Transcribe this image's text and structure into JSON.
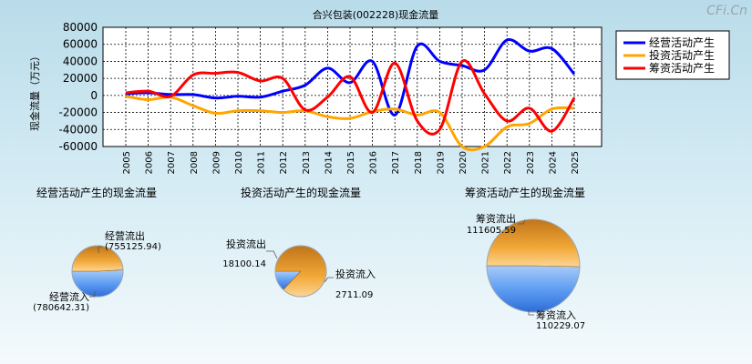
{
  "watermark": "CFi.Cn",
  "chart_data": [
    {
      "type": "line",
      "title": "合兴包装(002228)现金流量",
      "ylabel": "现金流量（万元）",
      "x": [
        "2005",
        "2006",
        "2007",
        "2008",
        "2009",
        "2010",
        "2011",
        "2012",
        "2013",
        "2014",
        "2015",
        "2016",
        "2017",
        "2018",
        "2019",
        "2020",
        "2021",
        "2022",
        "2023",
        "2024",
        "2025"
      ],
      "yticks": [
        "80000",
        "60000",
        "40000",
        "20000",
        "0",
        "-20000",
        "-40000",
        "-60000"
      ],
      "ylim": [
        -60000,
        80000
      ],
      "grid": true,
      "legend_position": "top-right",
      "series": [
        {
          "name": "经营活动产生",
          "color": "#0000ff",
          "values": [
            2000,
            3000,
            1000,
            1000,
            -3000,
            -1000,
            -2000,
            5000,
            12000,
            32000,
            15000,
            40000,
            -23000,
            58000,
            40000,
            35000,
            30000,
            65000,
            52000,
            55000,
            25000
          ]
        },
        {
          "name": "投资活动产生",
          "color": "#ffa500",
          "values": [
            -1000,
            -5000,
            -2000,
            -12000,
            -21000,
            -18000,
            -18000,
            -20000,
            -18000,
            -25000,
            -27000,
            -19000,
            -16000,
            -23000,
            -20000,
            -60000,
            -60000,
            -37000,
            -33000,
            -16000,
            -15000
          ]
        },
        {
          "name": "筹资活动产生",
          "color": "#ff0000",
          "values": [
            3000,
            5000,
            -1000,
            24000,
            26000,
            27000,
            17000,
            20000,
            -17000,
            -2000,
            22000,
            -20000,
            38000,
            -30000,
            -40000,
            40000,
            2000,
            -30000,
            -15000,
            -42000,
            -3000
          ]
        }
      ]
    },
    {
      "type": "pie",
      "title": "经营活动产生的现金流量",
      "slices": [
        {
          "label": "经营流出",
          "value": 755125.94,
          "value_text": "(755125.94)",
          "color": "#f0a030"
        },
        {
          "label": "经营流入",
          "value": 780642.31,
          "value_text": "(780642.31)",
          "color": "#5a9af0"
        }
      ]
    },
    {
      "type": "pie",
      "title": "投资活动产生的现金流量",
      "slices": [
        {
          "label": "投资流出",
          "value": 18100.14,
          "value_text": "18100.14",
          "color": "#f0a030"
        },
        {
          "label": "投资流入",
          "value": 2711.09,
          "value_text": "2711.09",
          "color": "#5a9af0"
        }
      ]
    },
    {
      "type": "pie",
      "title": "筹资活动产生的现金流量",
      "slices": [
        {
          "label": "筹资流出",
          "value": 111605.59,
          "value_text": "111605.59",
          "color": "#f0a030"
        },
        {
          "label": "筹资流入",
          "value": 110229.07,
          "value_text": "110229.07",
          "color": "#5a9af0"
        }
      ]
    }
  ]
}
